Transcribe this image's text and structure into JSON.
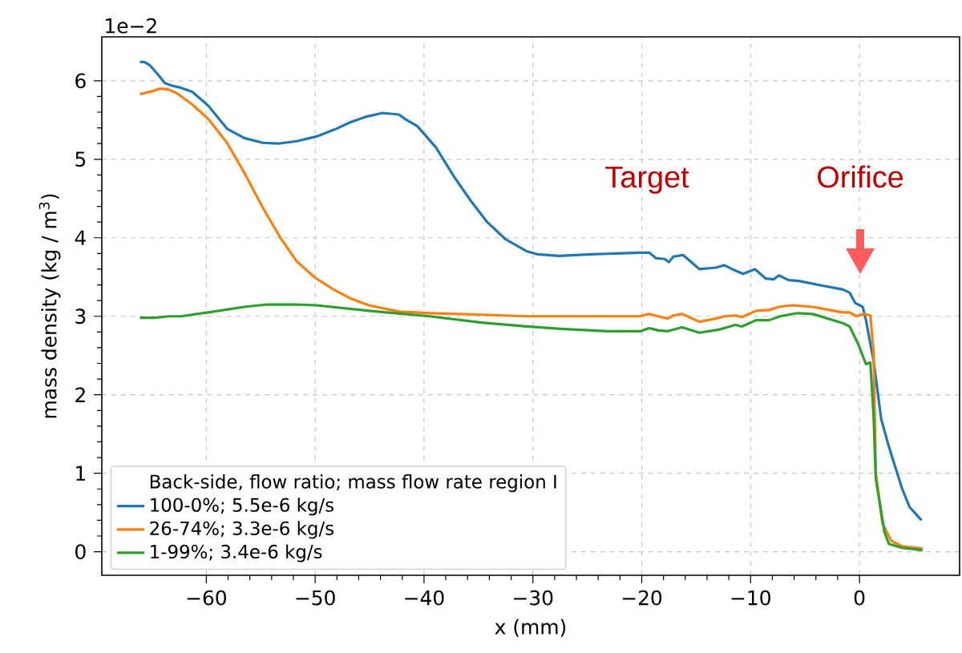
{
  "chart_data": {
    "type": "line",
    "xlabel": "x (mm)",
    "ylabel": "mass density (kg / m$^{3}$)",
    "legend_title": "Back-side, flow ratio;   mass flow rate region I",
    "xlim": [
      -69.6,
      9.2
    ],
    "ylim": [
      -0.3,
      6.56
    ],
    "xticks": [
      {
        "value": -60,
        "label": "−60"
      },
      {
        "value": -50,
        "label": "−50"
      },
      {
        "value": -40,
        "label": "−40"
      },
      {
        "value": -30,
        "label": "−30"
      },
      {
        "value": -20,
        "label": "−20"
      },
      {
        "value": -10,
        "label": "−10"
      },
      0
    ],
    "yticks": [
      0,
      1,
      2,
      3,
      4,
      5,
      6
    ],
    "grid": true,
    "legend": "bottom left",
    "line_style": "solid",
    "marker": "none",
    "annotations": [
      "1e−2",
      "Target",
      "Orifice"
    ],
    "series": [
      {
        "name": "100-0%;        5.5e-6 kg/s",
        "color": "#1f77b4",
        "x": [
          -66.1,
          -65.7,
          -65.2,
          -64.5,
          -63.8,
          -63.2,
          -62.3,
          -61.3,
          -59.8,
          -58.1,
          -56.5,
          -54.8,
          -53.4,
          -51.7,
          -49.9,
          -48.2,
          -46.8,
          -45.4,
          -43.8,
          -42.3,
          -41.7,
          -40.6,
          -38.9,
          -37.2,
          -35.7,
          -34.2,
          -32.5,
          -30.6,
          -29.6,
          -27.6,
          -24.6,
          -20.2,
          -19.3,
          -18.7,
          -17.9,
          -17.5,
          -17.1,
          -16.2,
          -14.7,
          -13.2,
          -12.4,
          -11.7,
          -10.7,
          -9.6,
          -8.6,
          -7.9,
          -7.4,
          -6.5,
          -5.6,
          -3.4,
          -1.5,
          -0.9,
          -0.4,
          0.3,
          0.6,
          1.3,
          2.0,
          2.7,
          3.9,
          4.6,
          5.7
        ],
        "values": [
          6.24,
          6.24,
          6.2,
          6.09,
          5.97,
          5.94,
          5.91,
          5.86,
          5.68,
          5.39,
          5.27,
          5.21,
          5.2,
          5.23,
          5.29,
          5.38,
          5.47,
          5.54,
          5.59,
          5.57,
          5.51,
          5.42,
          5.15,
          4.77,
          4.47,
          4.2,
          3.98,
          3.83,
          3.79,
          3.77,
          3.79,
          3.81,
          3.81,
          3.74,
          3.73,
          3.69,
          3.76,
          3.78,
          3.6,
          3.62,
          3.65,
          3.6,
          3.54,
          3.6,
          3.48,
          3.47,
          3.52,
          3.46,
          3.45,
          3.39,
          3.34,
          3.3,
          3.17,
          3.12,
          2.95,
          2.43,
          1.69,
          1.34,
          0.81,
          0.57,
          0.4
        ]
      },
      {
        "name": "26-74%;        3.3e-6 kg/s",
        "color": "#ff7f0e",
        "x": [
          -66.1,
          -64.9,
          -64.3,
          -63.5,
          -62.7,
          -61.3,
          -59.8,
          -58.1,
          -56.4,
          -54.8,
          -53.2,
          -51.7,
          -50.0,
          -48.3,
          -46.8,
          -45.1,
          -42.3,
          -39.5,
          -34.7,
          -30.6,
          -20.2,
          -19.3,
          -18.5,
          -17.6,
          -17.1,
          -16.3,
          -14.7,
          -13.2,
          -12.4,
          -11.4,
          -10.8,
          -9.5,
          -8.3,
          -7.4,
          -6.2,
          -4.3,
          -1.6,
          -0.9,
          -0.3,
          0.4,
          1.0,
          1.3,
          1.5,
          2.1,
          2.9,
          3.9,
          5.8
        ],
        "values": [
          5.83,
          5.87,
          5.9,
          5.89,
          5.84,
          5.7,
          5.51,
          5.21,
          4.8,
          4.38,
          4.0,
          3.7,
          3.49,
          3.34,
          3.23,
          3.14,
          3.06,
          3.04,
          3.02,
          3.0,
          3.0,
          3.03,
          3.0,
          2.97,
          3.01,
          3.03,
          2.93,
          2.97,
          3.0,
          3.01,
          2.99,
          3.07,
          3.08,
          3.12,
          3.14,
          3.12,
          3.05,
          3.05,
          3.0,
          3.03,
          3.01,
          2.54,
          1.01,
          0.37,
          0.14,
          0.07,
          0.04
        ]
      },
      {
        "name": "1-99%;          3.4e-6 kg/s",
        "color": "#2ca02c",
        "x": [
          -66.1,
          -64.8,
          -63.4,
          -62.3,
          -59.8,
          -56.5,
          -54.4,
          -51.8,
          -49.9,
          -45.1,
          -39.5,
          -34.7,
          -30.6,
          -27.5,
          -23.2,
          -20.1,
          -19.3,
          -18.5,
          -17.6,
          -16.3,
          -14.7,
          -12.9,
          -11.4,
          -10.8,
          -9.5,
          -8.3,
          -7.3,
          -5.7,
          -4.3,
          -1.5,
          -0.9,
          -0.1,
          0.6,
          1.0,
          1.3,
          1.5,
          2.3,
          2.7,
          3.9,
          5.8
        ],
        "values": [
          2.98,
          2.98,
          3.0,
          3.0,
          3.05,
          3.12,
          3.15,
          3.15,
          3.14,
          3.07,
          3.0,
          2.92,
          2.87,
          2.84,
          2.81,
          2.81,
          2.85,
          2.82,
          2.81,
          2.86,
          2.79,
          2.83,
          2.89,
          2.87,
          2.95,
          2.95,
          3.0,
          3.04,
          3.03,
          2.91,
          2.87,
          2.64,
          2.39,
          2.41,
          1.73,
          0.93,
          0.25,
          0.1,
          0.05,
          0.02
        ]
      }
    ]
  }
}
